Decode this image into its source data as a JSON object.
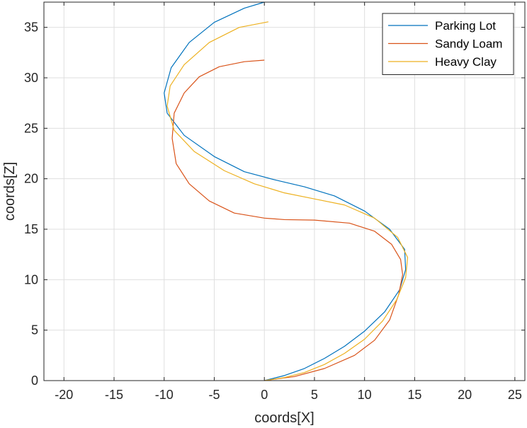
{
  "chart_data": {
    "type": "line",
    "title": "",
    "xlabel": "coords[X]",
    "ylabel": "coords[Z]",
    "xlim": [
      -22,
      26
    ],
    "ylim": [
      0,
      37.5
    ],
    "xticks": [
      -20,
      -15,
      -10,
      -5,
      0,
      5,
      10,
      15,
      20,
      25
    ],
    "yticks": [
      0,
      5,
      10,
      15,
      20,
      25,
      30,
      35
    ],
    "grid": true,
    "legend_position": "top-right",
    "series": [
      {
        "name": "Parking Lot",
        "color": "#0072BD",
        "points": [
          [
            0,
            0
          ],
          [
            2,
            0.5
          ],
          [
            4,
            1.2
          ],
          [
            6,
            2.2
          ],
          [
            8,
            3.4
          ],
          [
            10,
            4.9
          ],
          [
            12,
            6.8
          ],
          [
            13.5,
            9
          ],
          [
            14.1,
            11
          ],
          [
            14,
            13
          ],
          [
            12.5,
            15
          ],
          [
            10,
            16.8
          ],
          [
            7,
            18.3
          ],
          [
            4,
            19.2
          ],
          [
            1,
            19.9
          ],
          [
            -2,
            20.7
          ],
          [
            -5,
            22.2
          ],
          [
            -8,
            24.3
          ],
          [
            -9.7,
            26.5
          ],
          [
            -10,
            28.5
          ],
          [
            -9.3,
            31
          ],
          [
            -7.5,
            33.5
          ],
          [
            -5,
            35.5
          ],
          [
            -2,
            36.9
          ],
          [
            0,
            37.5
          ]
        ]
      },
      {
        "name": "Sandy Loam",
        "color": "#D95319",
        "points": [
          [
            0,
            0
          ],
          [
            3,
            0.4
          ],
          [
            6,
            1.2
          ],
          [
            9,
            2.5
          ],
          [
            11,
            4
          ],
          [
            12.5,
            6
          ],
          [
            13.4,
            8.5
          ],
          [
            13.8,
            10.5
          ],
          [
            13.6,
            12
          ],
          [
            12.7,
            13.5
          ],
          [
            11,
            14.8
          ],
          [
            8.5,
            15.6
          ],
          [
            5,
            15.9
          ],
          [
            2,
            15.95
          ],
          [
            0,
            16.1
          ],
          [
            -3,
            16.6
          ],
          [
            -5.5,
            17.8
          ],
          [
            -7.5,
            19.5
          ],
          [
            -8.8,
            21.5
          ],
          [
            -9.2,
            24
          ],
          [
            -9,
            26.5
          ],
          [
            -8,
            28.5
          ],
          [
            -6.5,
            30.1
          ],
          [
            -4.5,
            31.1
          ],
          [
            -2,
            31.6
          ],
          [
            0,
            31.75
          ]
        ]
      },
      {
        "name": "Heavy Clay",
        "color": "#EDB120",
        "points": [
          [
            0,
            0
          ],
          [
            2,
            0.3
          ],
          [
            4,
            0.8
          ],
          [
            6,
            1.6
          ],
          [
            8,
            2.7
          ],
          [
            10,
            4.1
          ],
          [
            11.8,
            5.9
          ],
          [
            13.2,
            8
          ],
          [
            14.1,
            10.2
          ],
          [
            14.3,
            12.2
          ],
          [
            13.3,
            14.2
          ],
          [
            11,
            16.1
          ],
          [
            8,
            17.4
          ],
          [
            5,
            18
          ],
          [
            2,
            18.6
          ],
          [
            -1,
            19.5
          ],
          [
            -4,
            20.8
          ],
          [
            -7,
            22.7
          ],
          [
            -9,
            24.8
          ],
          [
            -9.7,
            27.2
          ],
          [
            -9.4,
            29.2
          ],
          [
            -8,
            31.3
          ],
          [
            -5.5,
            33.5
          ],
          [
            -2.5,
            35
          ],
          [
            0.4,
            35.55
          ]
        ]
      }
    ]
  }
}
